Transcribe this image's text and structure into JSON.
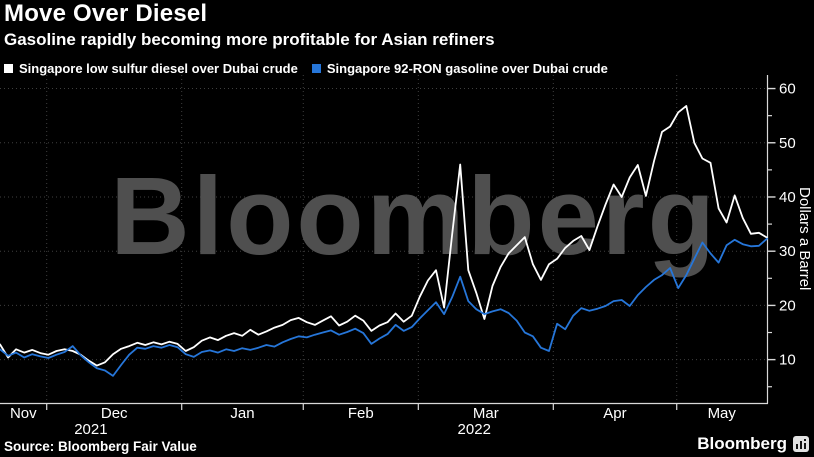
{
  "header": {
    "title": "Move Over Diesel",
    "subtitle": "Gasoline rapidly becoming more profitable for Asian refiners"
  },
  "footer": {
    "source": "Source: Bloomberg Fair Value",
    "brand": "Bloomberg",
    "brand_icon": "terminal-bars-icon"
  },
  "colors": {
    "background": "#000000",
    "diesel_line": "#ffffff",
    "gasoline_line": "#2676d9",
    "gridline": "#3f3f3f",
    "axis": "#d9d9d9",
    "watermark": "#4f4f4f",
    "text": "#ffffff"
  },
  "chart_data": {
    "type": "line",
    "title": "Move Over Diesel",
    "subtitle": "Gasoline rapidly becoming more profitable for Asian refiners",
    "watermark": "Bloomberg",
    "ylabel": "Dollars a Barrel",
    "ylabel_side": "right",
    "ylim": [
      2,
      62.5
    ],
    "y_ticks": [
      10,
      20,
      30,
      40,
      50,
      60
    ],
    "y_minor_ticks": [
      5,
      15,
      25,
      35,
      45,
      55
    ],
    "grid": "dotted",
    "legend_position": "top-left",
    "x_months": [
      {
        "label": "Nov",
        "center": 0.0304
      },
      {
        "label": "Dec",
        "center": 0.1489
      },
      {
        "label": "Jan",
        "center": 0.3162
      },
      {
        "label": "Feb",
        "center": 0.4704
      },
      {
        "label": "Mar",
        "center": 0.6334
      },
      {
        "label": "Apr",
        "center": 0.8018
      },
      {
        "label": "May",
        "center": 0.941
      }
    ],
    "x_month_starts": [
      0.0609,
      0.2369,
      0.3954,
      0.5454,
      0.7214,
      0.8823
    ],
    "x_years": [
      {
        "label": "2021",
        "center": 0.1185
      },
      {
        "label": "2022",
        "center": 0.6183
      }
    ],
    "x_range_note": "daily values, late Nov 2021 through late May 2022, sampled evenly",
    "series": [
      {
        "id": "diesel",
        "name": "Singapore low sulfur diesel over Dubai crude",
        "color": "#ffffff",
        "values": [
          12.8,
          10.4,
          11.9,
          11.3,
          11.8,
          11.2,
          10.9,
          11.6,
          11.9,
          11.6,
          10.9,
          9.8,
          8.9,
          9.5,
          11.0,
          12.0,
          12.5,
          13.1,
          12.7,
          13.2,
          12.8,
          13.3,
          12.9,
          11.6,
          12.3,
          13.5,
          14.1,
          13.6,
          14.4,
          14.9,
          14.4,
          15.5,
          14.6,
          15.2,
          15.9,
          16.4,
          17.3,
          17.7,
          16.9,
          16.4,
          17.2,
          18.0,
          16.3,
          17.0,
          18.1,
          17.2,
          15.3,
          16.3,
          16.9,
          18.5,
          17.0,
          18.1,
          21.6,
          24.6,
          26.5,
          19.6,
          33.0,
          46.0,
          26.5,
          22.3,
          17.5,
          23.6,
          27.1,
          29.6,
          31.1,
          32.6,
          27.6,
          24.7,
          27.6,
          28.6,
          30.6,
          31.9,
          32.8,
          30.2,
          34.6,
          38.6,
          42.3,
          40.0,
          43.6,
          45.9,
          40.2,
          46.6,
          52.0,
          53.0,
          55.6,
          56.8,
          50.0,
          47.1,
          46.3,
          37.9,
          35.3,
          40.3,
          36.1,
          33.2,
          33.4,
          32.5
        ]
      },
      {
        "id": "gasoline",
        "name": "Singapore 92-RON gasoline over Dubai crude",
        "color": "#2676d9",
        "values": [
          11.9,
          10.7,
          11.3,
          10.4,
          11.0,
          10.6,
          10.3,
          10.9,
          11.4,
          12.5,
          10.8,
          9.5,
          8.4,
          8.0,
          7.0,
          9.0,
          10.9,
          12.2,
          12.0,
          12.5,
          12.2,
          12.7,
          12.3,
          11.0,
          10.5,
          11.4,
          11.7,
          11.3,
          11.9,
          11.6,
          12.1,
          11.8,
          12.2,
          12.7,
          12.4,
          13.2,
          13.8,
          14.3,
          14.1,
          14.6,
          15.0,
          15.4,
          14.6,
          15.1,
          15.7,
          14.9,
          12.9,
          13.9,
          14.7,
          16.4,
          15.3,
          16.0,
          17.6,
          19.1,
          20.6,
          18.4,
          21.5,
          25.3,
          20.8,
          19.3,
          18.4,
          18.9,
          19.3,
          18.6,
          17.2,
          15.0,
          14.3,
          12.2,
          11.6,
          16.6,
          15.6,
          18.1,
          19.5,
          19.0,
          19.4,
          19.9,
          20.8,
          21.0,
          19.9,
          21.9,
          23.4,
          24.7,
          25.6,
          26.9,
          23.2,
          25.6,
          28.6,
          31.6,
          29.6,
          27.9,
          31.1,
          32.1,
          31.3,
          30.9,
          31.0,
          32.3
        ]
      }
    ]
  }
}
